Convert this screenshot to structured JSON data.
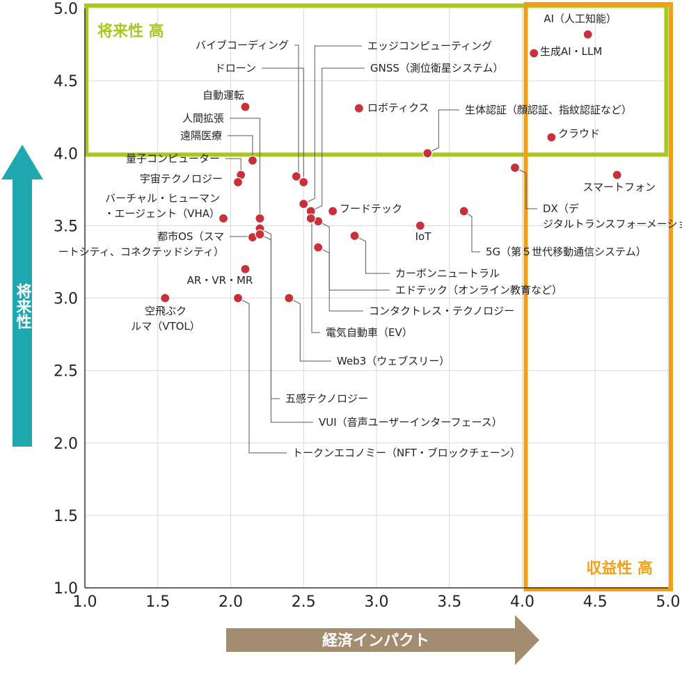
{
  "colors": {
    "point": "#c8303a",
    "grid": "#d9d9d9",
    "axis": "#333333",
    "future_box": "#a8c81e",
    "profit_box": "#f1a015",
    "y_arrow": "#1fa8b0",
    "x_arrow": "#a38c70"
  },
  "chart_data": {
    "type": "scatter",
    "xlabel": "経済インパクト",
    "ylabel": "将来性",
    "xlim": [
      1.0,
      5.0
    ],
    "ylim": [
      1.0,
      5.0
    ],
    "x_ticks": [
      "1.0",
      "1.5",
      "2.0",
      "2.5",
      "3.0",
      "3.5",
      "4.0",
      "4.5",
      "5.0"
    ],
    "y_ticks": [
      "1.0",
      "1.5",
      "2.0",
      "2.5",
      "3.0",
      "3.5",
      "4.0",
      "4.5",
      "5.0"
    ],
    "grid": true,
    "regions": [
      {
        "label": "将来性 高",
        "x_range": [
          1.0,
          4.0
        ],
        "y_range": [
          4.0,
          5.0
        ]
      },
      {
        "label": "収益性 高",
        "x_range": [
          4.0,
          5.0
        ],
        "y_range": [
          1.0,
          5.0
        ]
      }
    ],
    "points": [
      {
        "label": "AI（人工知能）",
        "x": 4.45,
        "y": 4.82
      },
      {
        "label": "生成AI・LLM",
        "x": 4.08,
        "y": 4.69
      },
      {
        "label": "クラウド",
        "x": 4.2,
        "y": 4.11
      },
      {
        "label": "スマートフォン",
        "x": 4.65,
        "y": 3.85
      },
      {
        "label": "生体認証（顔認証、指紋認証など）",
        "x": 3.35,
        "y": 4.0
      },
      {
        "label": "DX（デジタルトランスフォーメーション）",
        "x": 3.95,
        "y": 3.9
      },
      {
        "label": "5G（第５世代移動通信システム）",
        "x": 3.6,
        "y": 3.6
      },
      {
        "label": "IoT",
        "x": 3.3,
        "y": 3.5
      },
      {
        "label": "ロボティクス",
        "x": 2.88,
        "y": 4.31
      },
      {
        "label": "フードテック",
        "x": 2.7,
        "y": 3.6
      },
      {
        "label": "カーボンニュートラル",
        "x": 2.85,
        "y": 3.43
      },
      {
        "label": "エッジコンピューティング",
        "x": 2.5,
        "y": 3.65
      },
      {
        "label": "GNSS（測位衛星システム）",
        "x": 2.55,
        "y": 3.6
      },
      {
        "label": "エドテック（オンライン教育など）",
        "x": 2.6,
        "y": 3.53
      },
      {
        "label": "コンタクトレス・テクノロジー",
        "x": 2.6,
        "y": 3.35
      },
      {
        "label": "電気自動車（EV）",
        "x": 2.55,
        "y": 3.55
      },
      {
        "label": "バイブコーディング",
        "x": 2.45,
        "y": 3.84
      },
      {
        "label": "ドローン",
        "x": 2.5,
        "y": 3.8
      },
      {
        "label": "Web3（ウェブスリー）",
        "x": 2.4,
        "y": 3.0
      },
      {
        "label": "自動運転",
        "x": 2.1,
        "y": 4.32
      },
      {
        "label": "人間拡張",
        "x": 2.2,
        "y": 3.55
      },
      {
        "label": "遠隔医療",
        "x": 2.15,
        "y": 3.95
      },
      {
        "label": "量子コンピューター",
        "x": 2.07,
        "y": 3.85
      },
      {
        "label": "宇宙テクノロジー",
        "x": 2.05,
        "y": 3.8
      },
      {
        "label": "バーチャル・ヒューマン・エージェント（VHA）",
        "x": 1.95,
        "y": 3.55
      },
      {
        "label": "都市OS（スマートシティ、コネクテッドシティ）",
        "x": 2.15,
        "y": 3.42
      },
      {
        "label": "五感テクノロジー",
        "x": 2.2,
        "y": 3.48
      },
      {
        "label": "VUI（音声ユーザーインターフェース）",
        "x": 2.2,
        "y": 3.44
      },
      {
        "label": "AR・VR・MR",
        "x": 2.1,
        "y": 3.2
      },
      {
        "label": "トークンエコノミー（NFT・ブロックチェーン）",
        "x": 2.05,
        "y": 3.0
      },
      {
        "label": "空飛ぶクルマ（VTOL）",
        "x": 1.55,
        "y": 3.0
      }
    ]
  }
}
